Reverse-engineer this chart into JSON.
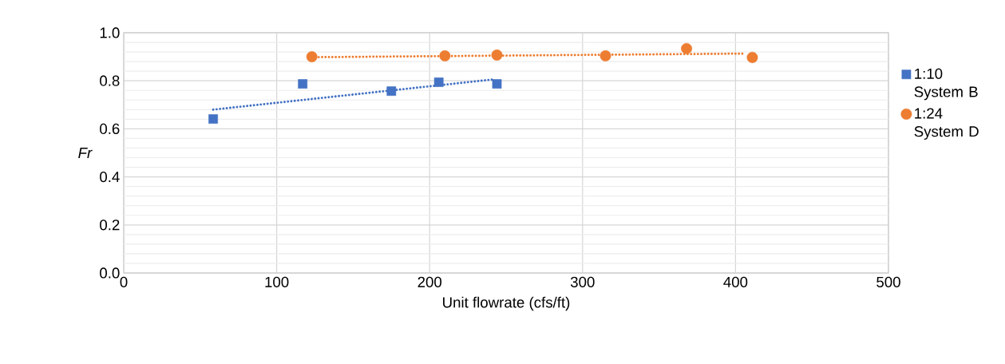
{
  "chart_data": {
    "type": "scatter",
    "xlabel": "Unit flowrate (cfs/ft)",
    "ylabel": "Fr",
    "xlim": [
      0,
      500
    ],
    "xticks": [
      0,
      100,
      200,
      300,
      400,
      500
    ],
    "ylim": [
      0,
      1
    ],
    "yticks": [
      {
        "value": 0,
        "label": "0.0"
      },
      {
        "value": 0.04,
        "label": null
      },
      {
        "value": 0.08,
        "label": null
      },
      {
        "value": 0.12,
        "label": null
      },
      {
        "value": 0.16,
        "label": null
      },
      {
        "value": 0.2,
        "label": "0.2"
      },
      {
        "value": 0.24,
        "label": null
      },
      {
        "value": 0.28,
        "label": null
      },
      {
        "value": 0.32,
        "label": null
      },
      {
        "value": 0.36,
        "label": null
      },
      {
        "value": 0.4,
        "label": "0.4"
      },
      {
        "value": 0.44,
        "label": null
      },
      {
        "value": 0.48,
        "label": null
      },
      {
        "value": 0.52,
        "label": null
      },
      {
        "value": 0.56,
        "label": null
      },
      {
        "value": 0.6,
        "label": "0.6"
      },
      {
        "value": 0.64,
        "label": null
      },
      {
        "value": 0.68,
        "label": null
      },
      {
        "value": 0.72,
        "label": null
      },
      {
        "value": 0.76,
        "label": null
      },
      {
        "value": 0.8,
        "label": "0.8"
      },
      {
        "value": 0.84,
        "label": null
      },
      {
        "value": 0.88,
        "label": null
      },
      {
        "value": 0.92,
        "label": null
      },
      {
        "value": 0.96,
        "label": null
      },
      {
        "value": 1.0,
        "label": "1.0"
      }
    ],
    "grid": true,
    "legend": "right",
    "series": [
      {
        "name": "1:10 System B",
        "color": "#4472c4",
        "marker": "square",
        "x": [
          58.5,
          117,
          175,
          206,
          244
        ],
        "values": [
          0.641,
          0.787,
          0.757,
          0.794,
          0.787
        ]
      },
      {
        "name": "1:24 System D",
        "color": "#ed7d31",
        "marker": "circle",
        "x": [
          123,
          210,
          244,
          315,
          368,
          411
        ],
        "values": [
          0.9,
          0.904,
          0.907,
          0.904,
          0.934,
          0.897
        ]
      },
      {
        "type": "line",
        "color": "#4472c4",
        "line_style": "dotted",
        "marker": "none",
        "x": [
          58.5,
          242
        ],
        "values": [
          0.68,
          0.806
        ]
      },
      {
        "type": "line",
        "color": "#ed7d31",
        "line_style": "dotted",
        "marker": "none",
        "x": [
          123,
          405
        ],
        "values": [
          0.898,
          0.913
        ]
      }
    ]
  }
}
